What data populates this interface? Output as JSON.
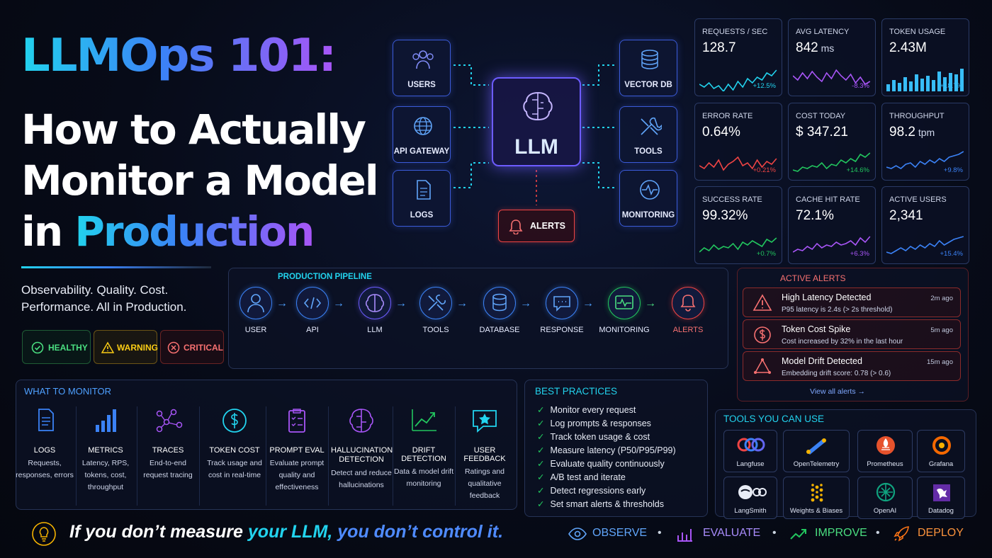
{
  "title": {
    "line1": "LLMOps 101:",
    "line2": "How to Actually",
    "line3": "Monitor a Model",
    "line4a": "in ",
    "line4b": "Production"
  },
  "subtitle": {
    "l1": "Observability. Quality. Cost.",
    "l2": "Performance. All in Production."
  },
  "status": {
    "healthy": "HEALTHY",
    "warning": "WARNING",
    "critical": "CRITICAL"
  },
  "arch": {
    "users": "USERS",
    "api": "API GATEWAY",
    "logs": "LOGS",
    "llm": "LLM",
    "vector": "VECTOR DB",
    "tools": "TOOLS",
    "monitoring": "MONITORING",
    "alerts": "ALERTS"
  },
  "metrics": [
    {
      "title": "REQUESTS / SEC",
      "value": "128.7",
      "unit": "",
      "delta": "+12.5%",
      "color": "#22d3ee"
    },
    {
      "title": "AVG LATENCY",
      "value": "842",
      "unit": " ms",
      "delta": "-8.3%",
      "color": "#a855f7"
    },
    {
      "title": "TOKEN USAGE",
      "value": "2.43M",
      "unit": "",
      "delta": "+18.7%",
      "color": "#38bdf8"
    },
    {
      "title": "ERROR RATE",
      "value": "0.64%",
      "unit": "",
      "delta": "+0.21%",
      "color": "#ef4444"
    },
    {
      "title": "COST TODAY",
      "value": "$ 347.21",
      "unit": "",
      "delta": "+14.6%",
      "color": "#22c55e"
    },
    {
      "title": "THROUGHPUT",
      "value": "98.2",
      "unit": " tpm",
      "delta": "+9.8%",
      "color": "#3b82f6"
    },
    {
      "title": "SUCCESS RATE",
      "value": "99.32%",
      "unit": "",
      "delta": "+0.7%",
      "color": "#22c55e"
    },
    {
      "title": "CACHE HIT RATE",
      "value": "72.1%",
      "unit": "",
      "delta": "+6.3%",
      "color": "#a855f7"
    },
    {
      "title": "ACTIVE USERS",
      "value": "2,341",
      "unit": "",
      "delta": "+15.4%",
      "color": "#3b82f6"
    }
  ],
  "pipeline": {
    "title": "PRODUCTION PIPELINE",
    "steps": [
      "USER",
      "API",
      "LLM",
      "TOOLS",
      "DATABASE",
      "RESPONSE",
      "MONITORING",
      "ALERTS"
    ]
  },
  "alerts_panel": {
    "title": "ACTIVE ALERTS",
    "items": [
      {
        "title": "High Latency Detected",
        "desc": "P95 latency is 2.4s (> 2s threshold)",
        "time": "2m ago"
      },
      {
        "title": "Token Cost Spike",
        "desc": "Cost increased by 32% in the last hour",
        "time": "5m ago"
      },
      {
        "title": "Model Drift Detected",
        "desc": "Embedding drift score: 0.78 (> 0.6)",
        "time": "15m ago"
      }
    ],
    "view_all": "View all alerts →"
  },
  "monitor": {
    "title": "WHAT TO MONITOR",
    "items": [
      {
        "label": "LOGS",
        "desc": "Requests, responses, errors"
      },
      {
        "label": "METRICS",
        "desc": "Latency, RPS, tokens, cost, throughput"
      },
      {
        "label": "TRACES",
        "desc": "End-to-end request tracing"
      },
      {
        "label": "TOKEN COST",
        "desc": "Track usage and cost in real-time"
      },
      {
        "label": "PROMPT EVAL",
        "desc": "Evaluate prompt quality and effectiveness"
      },
      {
        "label": "HALLUCINATION DETECTION",
        "desc": "Detect and reduce hallucinations"
      },
      {
        "label": "DRIFT DETECTION",
        "desc": "Data & model drift monitoring"
      },
      {
        "label": "USER FEEDBACK",
        "desc": "Ratings and qualitative feedback"
      }
    ]
  },
  "best": {
    "title": "BEST PRACTICES",
    "items": [
      "Monitor every request",
      "Log prompts & responses",
      "Track token usage & cost",
      "Measure latency (P50/P95/P99)",
      "Evaluate quality continuously",
      "A/B test and iterate",
      "Detect regressions early",
      "Set smart alerts & thresholds"
    ]
  },
  "tools": {
    "title": "TOOLS YOU CAN USE",
    "items": [
      "Langfuse",
      "OpenTelemetry",
      "Prometheus",
      "Grafana",
      "LangSmith",
      "Weights & Biases",
      "OpenAI",
      "Datadog"
    ]
  },
  "footer": {
    "q1": "If you don’t measure ",
    "q2": "your LLM,",
    "q3": " you don’t control it.",
    "observe": "OBSERVE",
    "evaluate": "EVALUATE",
    "improve": "IMPROVE",
    "deploy": "DEPLOY"
  }
}
